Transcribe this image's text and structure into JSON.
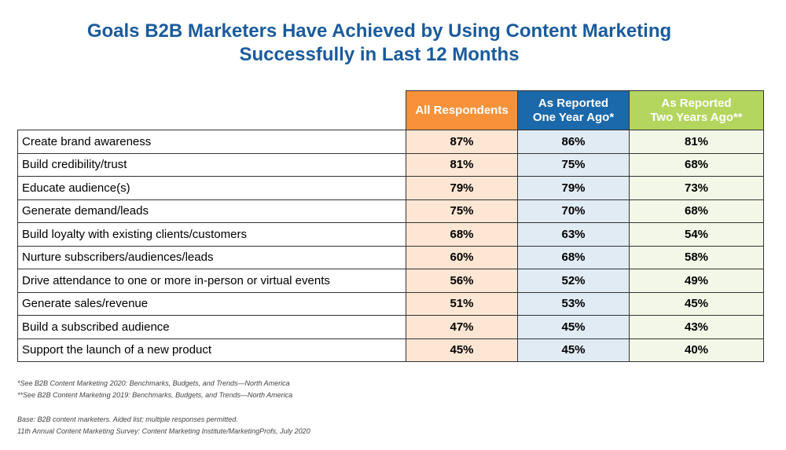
{
  "chart_data": {
    "type": "table",
    "title": [
      "Goals B2B Marketers Have Achieved by Using Content Marketing",
      "Successfully in Last 12 Months"
    ],
    "columns": [
      "All Respondents",
      [
        "As Reported",
        "One Year Ago*"
      ],
      [
        "As Reported",
        "Two Years Ago**"
      ]
    ],
    "colors": {
      "all": "#f7923a",
      "one_year": "#1b69aa",
      "two_years": "#b4d55e"
    },
    "rows": [
      {
        "label": "Create brand awareness",
        "values": [
          "87%",
          "86%",
          "81%"
        ]
      },
      {
        "label": "Build credibility/trust",
        "values": [
          "81%",
          "75%",
          "68%"
        ]
      },
      {
        "label": "Educate audience(s)",
        "values": [
          "79%",
          "79%",
          "73%"
        ]
      },
      {
        "label": "Generate demand/leads",
        "values": [
          "75%",
          "70%",
          "68%"
        ]
      },
      {
        "label": "Build loyalty with existing clients/customers",
        "values": [
          "68%",
          "63%",
          "54%"
        ]
      },
      {
        "label": "Nurture subscribers/audiences/leads",
        "values": [
          "60%",
          "68%",
          "58%"
        ]
      },
      {
        "label": "Drive attendance to one or more in-person or virtual events",
        "values": [
          "56%",
          "52%",
          "49%"
        ]
      },
      {
        "label": "Generate sales/revenue",
        "values": [
          "51%",
          "53%",
          "45%"
        ]
      },
      {
        "label": "Build a subscribed audience",
        "values": [
          "47%",
          "45%",
          "43%"
        ]
      },
      {
        "label": "Support the launch of a new product",
        "values": [
          "45%",
          "45%",
          "40%"
        ]
      }
    ]
  },
  "footnotes": [
    "*See B2B Content Marketing 2020: Benchmarks, Budgets, and Trends—North America",
    "**See B2B Content Marketing 2019: Benchmarks, Budgets, and Trends—North America"
  ],
  "source": [
    "Base: B2B content marketers. Aided list; multiple responses permitted.",
    "11th Annual Content Marketing Survey: Content Marketing Institute/MarketingProfs, July 2020"
  ]
}
